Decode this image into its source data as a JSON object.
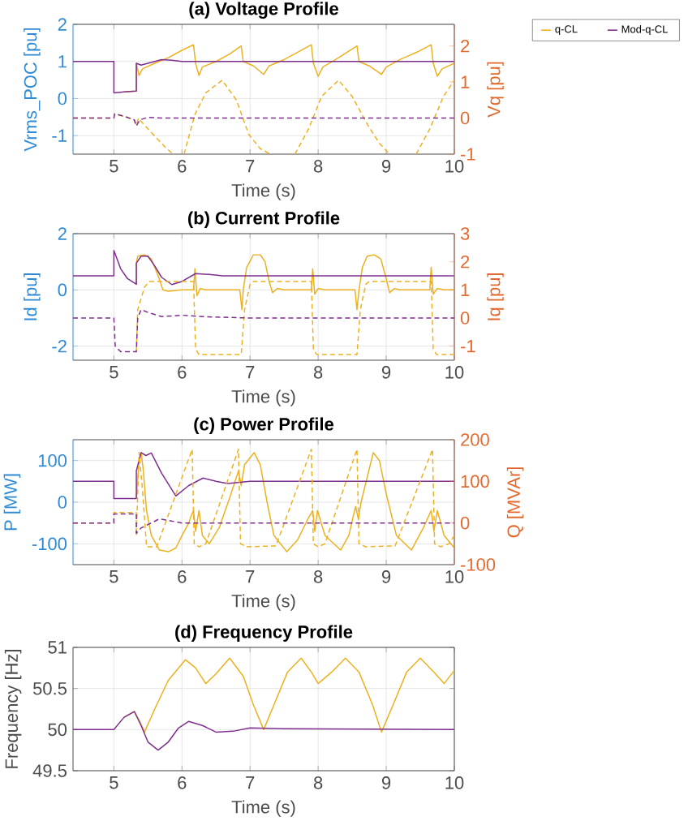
{
  "chart_data": [
    {
      "type": "line",
      "title": "(a) Voltage Profile",
      "xlabel": "Time (s)",
      "ylabel": "Vrms_POC [pu]",
      "y2label": "Vq [pu]",
      "xlim": [
        4.4,
        10
      ],
      "xticks": [
        5,
        6,
        7,
        8,
        9,
        10
      ],
      "ylim": [
        -1.5,
        2
      ],
      "yticks": [
        -1,
        0,
        1,
        2
      ],
      "y2lim": [
        -1,
        2.6
      ],
      "y2ticks": [
        -1,
        0,
        1,
        2
      ],
      "grid": true,
      "legend": "top right",
      "series": [
        {
          "name": "q-CL",
          "color": "#EDB120",
          "line_style": "solid",
          "x": [
            5.15,
            5.33,
            5.33,
            5.37,
            5.42,
            5.6,
            5.8,
            6.0,
            6.17,
            6.2,
            6.25,
            6.3,
            6.5,
            6.7,
            6.87,
            6.9,
            7.05,
            7.2,
            7.28,
            7.5,
            7.7,
            7.9,
            7.93,
            8.0,
            8.07,
            8.3,
            8.57,
            8.6,
            8.75,
            8.93,
            9.0,
            9.2,
            9.45,
            9.66,
            9.69,
            9.75,
            9.82,
            10
          ],
          "values": [
            0.18,
            0.2,
            0.95,
            0.62,
            0.8,
            0.95,
            1.1,
            1.3,
            1.45,
            0.95,
            0.62,
            0.85,
            1.0,
            1.2,
            1.42,
            1.0,
            0.88,
            0.65,
            0.88,
            1.05,
            1.25,
            1.45,
            0.95,
            0.6,
            0.85,
            1.1,
            1.42,
            1.0,
            0.88,
            0.65,
            0.85,
            1.05,
            1.25,
            1.45,
            0.95,
            0.6,
            0.8,
            0.95
          ]
        },
        {
          "name": "Mod-q-CL",
          "color": "#7E2F8E",
          "line_style": "solid",
          "x": [
            4.4,
            5,
            5,
            5.15,
            5.33,
            5.33,
            5.4,
            5.5,
            5.7,
            5.85,
            6.0,
            10
          ],
          "values": [
            1,
            1,
            0.15,
            0.18,
            0.2,
            0.95,
            0.9,
            0.95,
            1.05,
            1.03,
            1.0,
            1.0
          ]
        },
        {
          "color": "#EDB120",
          "line_style": "dashed",
          "axis": "y2",
          "x": [
            4.4,
            5,
            5.01,
            5.15,
            5.3,
            5.33,
            5.36,
            5.45,
            5.6,
            5.75,
            5.87,
            5.95,
            6.03,
            6.19,
            6.35,
            6.59,
            6.8,
            6.98,
            7.15,
            7.3,
            7.5,
            7.66,
            7.86,
            8.05,
            8.3,
            8.5,
            8.73,
            8.9,
            9.05,
            9.25,
            9.44,
            9.64,
            9.84,
            10
          ],
          "values": [
            0,
            0,
            0.1,
            0.05,
            -0.05,
            -0.2,
            0,
            -0.2,
            -0.5,
            -0.8,
            -1,
            null,
            -1,
            0.1,
            0.7,
            1.05,
            0.5,
            -0.45,
            -0.85,
            -1,
            null,
            -1,
            -0.3,
            0.6,
            1.05,
            0.6,
            -0.2,
            -0.7,
            -1,
            null,
            -1,
            -0.3,
            0.6,
            1.05
          ]
        },
        {
          "color": "#7E2F8E",
          "line_style": "dashed",
          "axis": "y2",
          "x": [
            4.4,
            5,
            5.01,
            5.15,
            5.3,
            5.33,
            5.38,
            5.5,
            5.7,
            10
          ],
          "values": [
            0,
            0,
            0.12,
            0.05,
            -0.05,
            -0.22,
            -0.05,
            0.02,
            0,
            0
          ]
        }
      ]
    },
    {
      "type": "line",
      "title": "(b) Current Profile",
      "xlabel": "Time (s)",
      "ylabel": "Id [pu]",
      "y2label": "Iq [pu]",
      "xlim": [
        4.4,
        10
      ],
      "xticks": [
        5,
        6,
        7,
        8,
        9,
        10
      ],
      "ylim": [
        -2.5,
        2
      ],
      "yticks": [
        -2,
        0,
        2
      ],
      "y2lim": [
        -1.5,
        3
      ],
      "y2ticks": [
        -1,
        0,
        1,
        2,
        3
      ],
      "grid": true,
      "series": [
        {
          "color": "#EDB120",
          "line_style": "solid",
          "x": [
            5.33,
            5.33,
            5.35,
            5.45,
            5.55,
            5.65,
            5.72,
            5.8,
            6.0,
            6.17,
            6.19,
            6.22,
            6.27,
            6.35,
            6.85,
            6.88,
            6.9,
            6.95,
            7.05,
            7.15,
            7.22,
            7.28,
            7.33,
            7.4,
            7.5,
            7.9,
            7.92,
            7.95,
            8.0,
            8.1,
            8.54,
            8.57,
            8.6,
            8.65,
            8.72,
            8.82,
            8.92,
            9.0,
            9.05,
            9.12,
            9.2,
            9.64,
            9.66,
            9.69,
            9.75,
            9.85,
            10
          ],
          "values": [
            0.2,
            0.95,
            1.2,
            1.25,
            1.1,
            0.5,
            0,
            -0.05,
            0,
            0,
            0.75,
            -0.2,
            0.05,
            0,
            0,
            -0.7,
            0,
            0.8,
            1.25,
            1.25,
            1.0,
            0.3,
            -0.1,
            0.05,
            0,
            0,
            0.75,
            -0.15,
            0.05,
            0,
            0,
            -0.7,
            0,
            0.8,
            1.2,
            1.25,
            1.1,
            0.4,
            -0.1,
            0.05,
            0,
            0,
            0.8,
            -0.15,
            0.05,
            0,
            0
          ]
        },
        {
          "color": "#7E2F8E",
          "line_style": "solid",
          "x": [
            4.4,
            5,
            5,
            5.1,
            5.2,
            5.33,
            5.33,
            5.4,
            5.5,
            5.6,
            5.7,
            5.85,
            6.0,
            6.2,
            6.4,
            6.6,
            10
          ],
          "values": [
            0.5,
            0.5,
            1.4,
            0.75,
            0.4,
            0.2,
            0.95,
            1.2,
            1.2,
            0.85,
            0.45,
            0.19,
            0.3,
            0.58,
            0.55,
            0.5,
            0.5
          ]
        },
        {
          "color": "#EDB120",
          "line_style": "dashed",
          "axis": "y2",
          "x": [
            5.33,
            5.35,
            5.45,
            5.52,
            6.17,
            6.2,
            6.25,
            6.87,
            6.92,
            7.0,
            7.05,
            7.9,
            7.93,
            7.98,
            8.57,
            8.62,
            8.7,
            8.75,
            9.66,
            9.69,
            9.74,
            10
          ],
          "values": [
            -1.2,
            0.3,
            1.1,
            1.3,
            1.3,
            -1.1,
            -1.3,
            -1.3,
            0.3,
            1.2,
            1.3,
            1.3,
            -1.1,
            -1.3,
            -1.3,
            0.3,
            1.2,
            1.3,
            1.3,
            -1.1,
            -1.3,
            -1.3
          ]
        },
        {
          "color": "#7E2F8E",
          "line_style": "dashed",
          "axis": "y2",
          "x": [
            4.4,
            5,
            5.02,
            5.1,
            5.33,
            5.35,
            5.4,
            5.5,
            5.7,
            6.0,
            6.3,
            7.0,
            10
          ],
          "values": [
            0,
            0,
            -1,
            -1.2,
            -1.2,
            0,
            0.3,
            0.2,
            0.05,
            0.1,
            0.05,
            0,
            0
          ]
        }
      ]
    },
    {
      "type": "line",
      "title": "(c) Power Profile",
      "xlabel": "Time (s)",
      "ylabel": "P [MW]",
      "y2label": "Q [MVAr]",
      "xlim": [
        4.4,
        10
      ],
      "xticks": [
        5,
        6,
        7,
        8,
        9,
        10
      ],
      "ylim": [
        -150,
        150
      ],
      "yticks": [
        -100,
        0,
        100
      ],
      "y2lim": [
        -100,
        200
      ],
      "y2ticks": [
        -100,
        0,
        100,
        200
      ],
      "grid": true,
      "series": [
        {
          "color": "#EDB120",
          "line_style": "solid",
          "x": [
            5.33,
            5.37,
            5.4,
            5.43,
            5.48,
            5.55,
            5.67,
            5.8,
            5.91,
            6.0,
            6.1,
            6.13,
            6.17,
            6.2,
            6.25,
            6.3,
            6.4,
            6.55,
            6.7,
            6.83,
            6.87,
            6.92,
            7.06,
            7.15,
            7.25,
            7.35,
            7.54,
            7.7,
            7.85,
            7.92,
            7.95,
            7.99,
            8.1,
            8.33,
            8.45,
            8.55,
            8.59,
            8.63,
            8.81,
            8.9,
            9.0,
            9.15,
            9.37,
            9.55,
            9.66,
            9.7,
            9.75,
            9.85,
            10
          ],
          "values": [
            9,
            100,
            119,
            80,
            -20,
            -80,
            -115,
            -119,
            -110,
            -80,
            -50,
            -35,
            -20,
            -70,
            -20,
            -80,
            -100,
            -60,
            10,
            75,
            40,
            90,
            119,
            90,
            0,
            -80,
            -119,
            -90,
            -40,
            -20,
            -70,
            -20,
            -80,
            -115,
            -80,
            -10,
            -40,
            0,
            119,
            100,
            20,
            -80,
            -115,
            -60,
            -20,
            -70,
            -20,
            -80,
            -110
          ]
        },
        {
          "color": "#7E2F8E",
          "line_style": "solid",
          "x": [
            4.4,
            5,
            5,
            5.33,
            5.33,
            5.4,
            5.47,
            5.55,
            5.7,
            5.91,
            6.1,
            6.31,
            6.5,
            6.67,
            7.0,
            7.3,
            10
          ],
          "values": [
            50,
            50,
            9,
            9,
            75,
            119,
            112,
            118,
            70,
            15,
            40,
            58,
            50,
            45,
            50,
            50,
            50
          ]
        },
        {
          "color": "#EDB120",
          "line_style": "dashed",
          "axis": "y2",
          "x": [
            4.4,
            5,
            5,
            5.33,
            5.33,
            5.37,
            5.42,
            5.48,
            5.63,
            6.15,
            6.18,
            6.25,
            6.35,
            6.83,
            6.86,
            6.95,
            7.38,
            7.9,
            7.93,
            8.0,
            8.1,
            8.57,
            8.6,
            8.7,
            9.13,
            9.68,
            9.71,
            9.8,
            9.92,
            10
          ],
          "values": [
            0,
            0,
            25,
            25,
            -30,
            170,
            80,
            -57,
            -57,
            177,
            -50,
            -57,
            -50,
            177,
            -50,
            -57,
            -55,
            177,
            -50,
            -57,
            -50,
            177,
            -50,
            -57,
            -55,
            177,
            -50,
            -57,
            -50,
            -30
          ]
        },
        {
          "color": "#7E2F8E",
          "line_style": "dashed",
          "axis": "y2",
          "x": [
            4.4,
            5,
            5,
            5.33,
            5.33,
            5.4,
            5.67,
            6.0,
            10
          ],
          "values": [
            0,
            0,
            22,
            22,
            -25,
            -12,
            10,
            0,
            0
          ]
        }
      ]
    },
    {
      "type": "line",
      "title": "(d) Frequency Profile",
      "xlabel": "Time (s)",
      "ylabel": "Frequency [Hz]",
      "xlim": [
        4.4,
        10
      ],
      "xticks": [
        5,
        6,
        7,
        8,
        9,
        10
      ],
      "ylim": [
        49.5,
        51
      ],
      "yticks": [
        49.5,
        50,
        50.5,
        51
      ],
      "grid": true,
      "series": [
        {
          "color": "#EDB120",
          "line_style": "solid",
          "x": [
            5.15,
            5.3,
            5.38,
            5.45,
            5.6,
            5.8,
            6.05,
            6.2,
            6.35,
            6.5,
            6.7,
            6.9,
            7.05,
            7.2,
            7.35,
            7.55,
            7.75,
            7.9,
            8.0,
            8.2,
            8.4,
            8.6,
            8.8,
            8.93,
            9.1,
            9.3,
            9.5,
            9.7,
            9.85,
            10
          ],
          "values": [
            50.15,
            50.22,
            50.1,
            49.97,
            50.25,
            50.6,
            50.85,
            50.75,
            50.56,
            50.68,
            50.87,
            50.65,
            50.3,
            50.0,
            50.3,
            50.7,
            50.87,
            50.7,
            50.56,
            50.7,
            50.87,
            50.7,
            50.3,
            49.97,
            50.3,
            50.7,
            50.87,
            50.7,
            50.56,
            50.72
          ]
        },
        {
          "color": "#7E2F8E",
          "line_style": "solid",
          "x": [
            4.4,
            5,
            5.15,
            5.3,
            5.4,
            5.5,
            5.65,
            5.8,
            5.95,
            6.1,
            6.3,
            6.5,
            6.75,
            7.0,
            7.5,
            10
          ],
          "values": [
            50,
            50,
            50.15,
            50.22,
            50.05,
            49.85,
            49.75,
            49.85,
            50.02,
            50.1,
            50.05,
            49.97,
            49.98,
            50.02,
            50.01,
            50
          ]
        }
      ]
    }
  ]
}
